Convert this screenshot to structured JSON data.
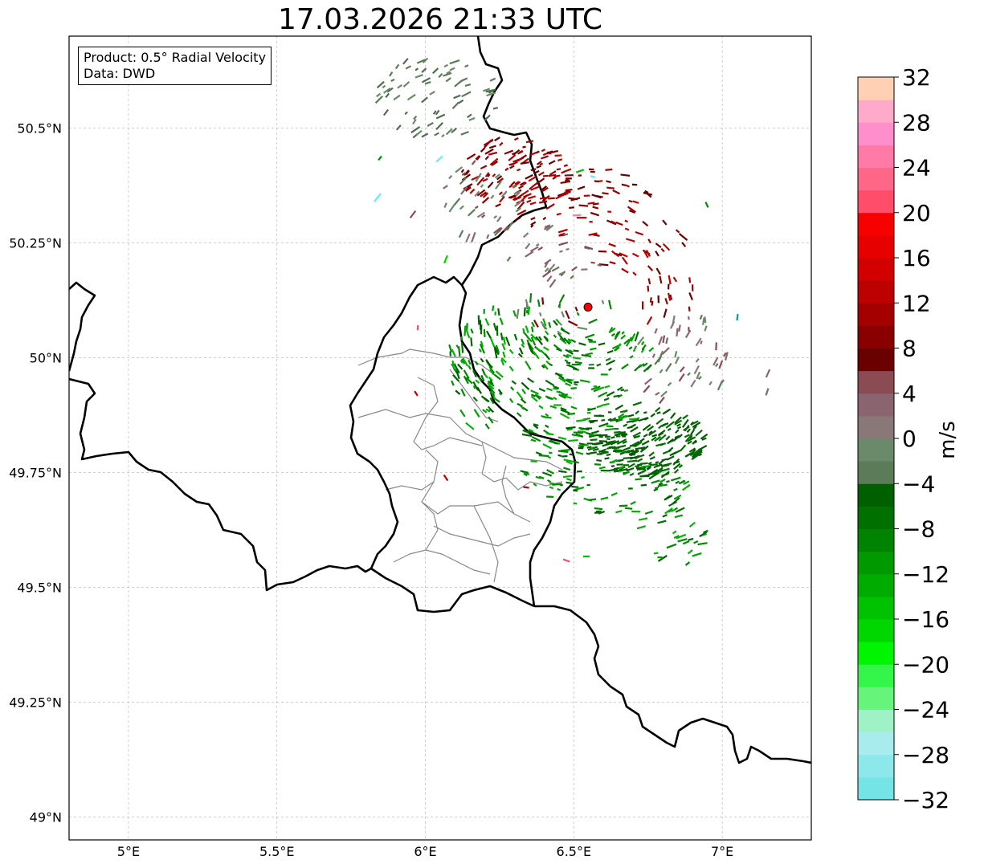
{
  "title": "17.03.2026 21:33 UTC",
  "info_box": {
    "product": "Product: 0.5° Radial Velocity",
    "data_source": "Data: DWD"
  },
  "map": {
    "lon_range": [
      4.8,
      7.3
    ],
    "lat_range": [
      48.95,
      50.7
    ],
    "lon_ticks": [
      {
        "value": 5.0,
        "label": "5°E"
      },
      {
        "value": 5.5,
        "label": "5.5°E"
      },
      {
        "value": 6.0,
        "label": "6°E"
      },
      {
        "value": 6.5,
        "label": "6.5°E"
      },
      {
        "value": 7.0,
        "label": "7°E"
      }
    ],
    "lat_ticks": [
      {
        "value": 49.0,
        "label": "49°N"
      },
      {
        "value": 49.25,
        "label": "49.25°N"
      },
      {
        "value": 49.5,
        "label": "49.5°N"
      },
      {
        "value": 49.75,
        "label": "49.75°N"
      },
      {
        "value": 50.0,
        "label": "50°N"
      },
      {
        "value": 50.25,
        "label": "50.25°N"
      },
      {
        "value": 50.5,
        "label": "50.5°N"
      }
    ],
    "grid": true,
    "radar_site": {
      "lon": 6.548,
      "lat": 50.11,
      "color": "#ff0000"
    }
  },
  "colorbar": {
    "label": "m/s",
    "min": -32,
    "max": 32,
    "tick_labels": [
      "32",
      "28",
      "24",
      "20",
      "16",
      "12",
      "8",
      "4",
      "0",
      "−4",
      "−8",
      "−12",
      "−16",
      "−20",
      "−24",
      "−28",
      "−32"
    ],
    "colors_bottom_to_top": [
      "#74e4e6",
      "#8ce8ea",
      "#a8ecee",
      "#9ef2c6",
      "#66f57a",
      "#33f54a",
      "#00f500",
      "#00d700",
      "#00c200",
      "#00ac00",
      "#009a00",
      "#008400",
      "#007000",
      "#006000",
      "#5b7b59",
      "#6b8a6a",
      "#8a7878",
      "#8a6570",
      "#8a4b52",
      "#6b0000",
      "#8a0000",
      "#a40000",
      "#bd0000",
      "#d30000",
      "#e60000",
      "#f70000",
      "#ff4d6a",
      "#ff6688",
      "#ff7aa6",
      "#ff8ecc",
      "#ffaacb",
      "#ffd0b3"
    ]
  },
  "colors": {
    "border": "#000000",
    "admin_border": "#888888",
    "grid": "#b0b0b0",
    "inbound_green": "#008a00",
    "outbound_red": "#8a0000",
    "near_zero": "#6b8a6a"
  }
}
